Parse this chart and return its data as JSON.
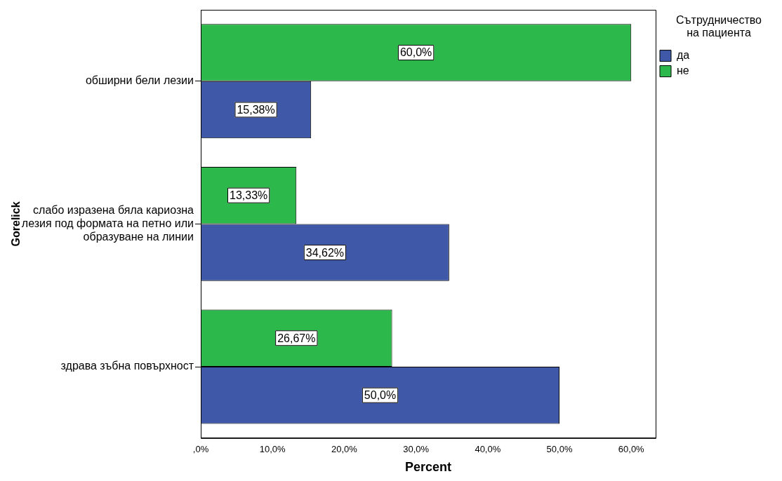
{
  "chart_data": {
    "type": "bar",
    "orientation": "horizontal",
    "categories": [
      "обширни бели лезии",
      "слабо изразена бяла кариозна лезия под формата на петно или образуване на линии",
      "здрава зъбна повърхност"
    ],
    "series": [
      {
        "name": "да",
        "color": "#3f58a8",
        "values": [
          15.38,
          34.62,
          50.0
        ],
        "value_labels": [
          "15,38%",
          "34,62%",
          "50,0%"
        ]
      },
      {
        "name": "не",
        "color": "#2db84c",
        "values": [
          60.0,
          13.33,
          26.67
        ],
        "value_labels": [
          "60,0%",
          "13,33%",
          "26,67%"
        ]
      }
    ],
    "xlim": [
      0,
      63.4
    ],
    "xticks": [
      {
        "value": 0,
        "label": ",0%"
      },
      {
        "value": 10,
        "label": "10,0%"
      },
      {
        "value": 20,
        "label": "20,0%"
      },
      {
        "value": 30,
        "label": "30,0%"
      },
      {
        "value": 40,
        "label": "40,0%"
      },
      {
        "value": 50,
        "label": "50,0%"
      },
      {
        "value": 60,
        "label": "60,0%"
      }
    ],
    "xlabel": "Percent",
    "ylabel": "Gorelick",
    "legend_title": "Сътрудничество на пациента",
    "legend": "top right",
    "grid": false
  }
}
